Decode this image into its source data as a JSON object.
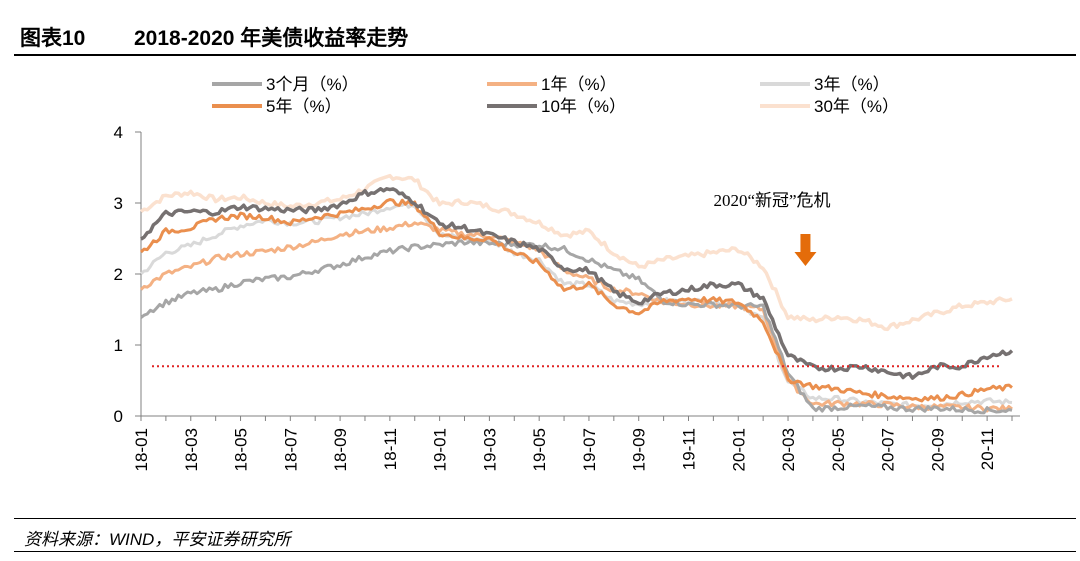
{
  "figure": {
    "label": "图表10",
    "title": "2018-2020 年美债收益率走势",
    "source": "资料来源：WIND，平安证券研究所"
  },
  "chart_data": {
    "type": "line",
    "title": "2018-2020 年美债收益率走势",
    "xlabel": "",
    "ylabel": "",
    "ylim": [
      0,
      4
    ],
    "yticks": [
      0,
      1,
      2,
      3,
      4
    ],
    "x_tick_labels": [
      "18-01",
      "18-03",
      "18-05",
      "18-07",
      "18-09",
      "18-11",
      "19-01",
      "19-03",
      "19-05",
      "19-07",
      "19-09",
      "19-11",
      "20-01",
      "20-03",
      "20-05",
      "20-07",
      "20-09",
      "20-11"
    ],
    "x_month_index": [
      0,
      1,
      2,
      3,
      4,
      5,
      6,
      7,
      8,
      9,
      10,
      11,
      12,
      13,
      14,
      15,
      16,
      17,
      18,
      19,
      20,
      21,
      22,
      23,
      24,
      25,
      26,
      27,
      28,
      29,
      30,
      31,
      32,
      33,
      34,
      35
    ],
    "series": [
      {
        "name": "3个月（%）",
        "color": "#a6a6a6",
        "width": 3,
        "values": [
          1.42,
          1.6,
          1.73,
          1.78,
          1.88,
          1.93,
          1.96,
          2.05,
          2.13,
          2.24,
          2.32,
          2.38,
          2.41,
          2.45,
          2.43,
          2.42,
          2.41,
          2.35,
          2.2,
          2.05,
          1.92,
          1.62,
          1.57,
          1.57,
          1.55,
          1.54,
          0.6,
          0.1,
          0.12,
          0.14,
          0.12,
          0.1,
          0.11,
          0.09,
          0.08,
          0.08
        ]
      },
      {
        "name": "1年（%）",
        "color": "#f4b183",
        "width": 3,
        "values": [
          1.8,
          2.0,
          2.1,
          2.22,
          2.28,
          2.32,
          2.38,
          2.45,
          2.56,
          2.6,
          2.65,
          2.72,
          2.62,
          2.56,
          2.54,
          2.45,
          2.34,
          2.05,
          1.93,
          1.78,
          1.73,
          1.6,
          1.58,
          1.55,
          1.55,
          1.5,
          0.5,
          0.17,
          0.18,
          0.17,
          0.16,
          0.13,
          0.13,
          0.12,
          0.11,
          0.1
        ]
      },
      {
        "name": "3年（%）",
        "color": "#d9d9d9",
        "width": 3,
        "values": [
          2.0,
          2.3,
          2.4,
          2.55,
          2.68,
          2.76,
          2.72,
          2.74,
          2.8,
          2.85,
          2.95,
          2.98,
          2.55,
          2.5,
          2.48,
          2.3,
          2.2,
          1.86,
          1.85,
          1.62,
          1.58,
          1.62,
          1.62,
          1.6,
          1.58,
          1.36,
          0.48,
          0.25,
          0.24,
          0.2,
          0.17,
          0.15,
          0.16,
          0.2,
          0.21,
          0.19
        ]
      },
      {
        "name": "5年（%）",
        "color": "#ea8f4e",
        "width": 3,
        "values": [
          2.3,
          2.6,
          2.65,
          2.78,
          2.82,
          2.8,
          2.72,
          2.8,
          2.85,
          2.92,
          3.02,
          2.98,
          2.58,
          2.5,
          2.5,
          2.3,
          2.15,
          1.78,
          1.85,
          1.57,
          1.45,
          1.62,
          1.65,
          1.63,
          1.6,
          1.34,
          0.52,
          0.42,
          0.38,
          0.32,
          0.28,
          0.25,
          0.25,
          0.3,
          0.38,
          0.4
        ]
      },
      {
        "name": "10年（%）",
        "color": "#767171",
        "width": 3.5,
        "values": [
          2.5,
          2.85,
          2.88,
          2.87,
          2.95,
          2.92,
          2.9,
          2.9,
          2.98,
          3.14,
          3.2,
          3.02,
          2.7,
          2.65,
          2.55,
          2.45,
          2.35,
          2.08,
          2.05,
          1.75,
          1.6,
          1.73,
          1.78,
          1.85,
          1.85,
          1.65,
          0.85,
          0.68,
          0.67,
          0.7,
          0.62,
          0.55,
          0.7,
          0.7,
          0.85,
          0.92
        ]
      },
      {
        "name": "30年（%）",
        "color": "#fbe1cf",
        "width": 3.5,
        "values": [
          2.88,
          3.1,
          3.15,
          3.05,
          3.08,
          3.0,
          2.95,
          3.0,
          3.05,
          3.2,
          3.38,
          3.33,
          2.98,
          3.02,
          2.95,
          2.85,
          2.72,
          2.55,
          2.6,
          2.3,
          2.1,
          2.2,
          2.25,
          2.3,
          2.35,
          2.1,
          1.4,
          1.35,
          1.4,
          1.35,
          1.25,
          1.35,
          1.45,
          1.55,
          1.6,
          1.65
        ]
      }
    ],
    "reference_line": {
      "value": 0.7,
      "style": "dotted",
      "color": "#e02424"
    },
    "annotation": {
      "text": "2020“新冠”危机",
      "arrow_color": "#e46c0a",
      "at_month_index": 26.7
    }
  }
}
